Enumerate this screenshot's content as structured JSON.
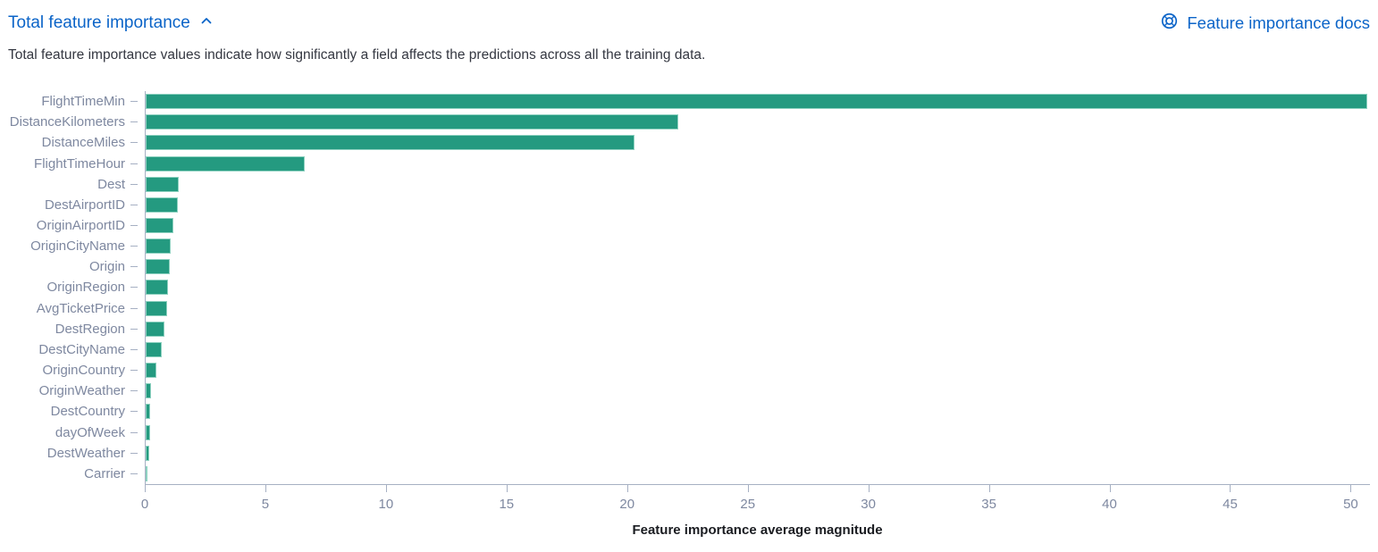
{
  "header": {
    "title": "Total feature importance",
    "docs_link_label": "Feature importance docs",
    "description": "Total feature importance values indicate how significantly a field affects the predictions across all the training data.",
    "link_color": "#0b64c8",
    "collapse_state": "expanded"
  },
  "chart_data": {
    "type": "bar",
    "orientation": "horizontal",
    "title": "",
    "xlabel": "Feature importance average magnitude",
    "ylabel": "",
    "categories": [
      "FlightTimeMin",
      "DistanceKilometers",
      "DistanceMiles",
      "FlightTimeHour",
      "Dest",
      "DestAirportID",
      "OriginAirportID",
      "OriginCityName",
      "Origin",
      "OriginRegion",
      "AvgTicketPrice",
      "DestRegion",
      "DestCityName",
      "OriginCountry",
      "OriginWeather",
      "DestCountry",
      "dayOfWeek",
      "DestWeather",
      "Carrier"
    ],
    "values": [
      50.7,
      22.1,
      20.3,
      6.6,
      1.37,
      1.35,
      1.14,
      1.04,
      1.0,
      0.94,
      0.88,
      0.78,
      0.67,
      0.44,
      0.22,
      0.2,
      0.2,
      0.15,
      0.07
    ],
    "x_ticks": [
      0,
      5,
      10,
      15,
      20,
      25,
      30,
      35,
      40,
      45,
      50
    ],
    "xlim": [
      0,
      50.8
    ],
    "grid": false,
    "legend": false,
    "bar_color": "#249a80",
    "axis_label_color": "#7e88a0",
    "axis_line_color": "#a6b0c3"
  }
}
